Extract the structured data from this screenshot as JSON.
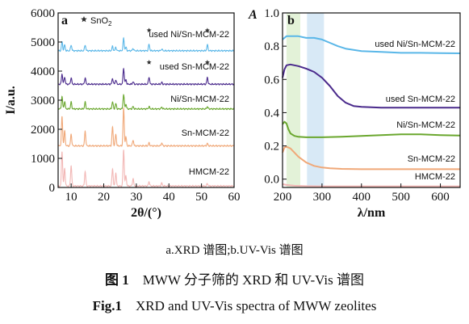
{
  "chart_data": [
    {
      "type": "line",
      "panel_label": "a",
      "xlabel": "2θ/(°)",
      "ylabel": "I/a.u.",
      "xlim": [
        6,
        60
      ],
      "ylim": [
        0,
        6000
      ],
      "xticks": [
        10,
        20,
        30,
        40,
        50,
        60
      ],
      "yticks": [
        0,
        1000,
        2000,
        3000,
        4000,
        5000,
        6000
      ],
      "legend": {
        "marker": "*",
        "label": "SnO2"
      },
      "peaks": [
        7.2,
        8.0,
        10.0,
        14.3,
        22.7,
        23.7,
        26.1,
        26.8,
        29.0,
        33.9,
        37.8,
        51.8
      ],
      "series": [
        {
          "name": "used Ni/Sn-MCM-22",
          "baseline": 4700,
          "peak_heights": [
            300,
            200,
            200,
            200,
            150,
            120,
            420,
            120,
            80,
            220,
            60,
            200
          ],
          "color": "#5ab7e8",
          "sno2_peaks_at": [
            33.9,
            51.8
          ]
        },
        {
          "name": "used Sn-MCM-22",
          "baseline": 3550,
          "peak_heights": [
            350,
            250,
            220,
            220,
            200,
            150,
            550,
            150,
            80,
            250,
            60,
            230
          ],
          "color": "#4a2a8c",
          "sno2_peaks_at": [
            33.9,
            51.8
          ]
        },
        {
          "name": "Ni/Sn-MCM-22",
          "baseline": 2700,
          "peak_heights": [
            420,
            250,
            230,
            230,
            250,
            180,
            500,
            160,
            80,
            80,
            60,
            80
          ],
          "color": "#6aa72e"
        },
        {
          "name": "Sn-MCM-22",
          "baseline": 1430,
          "peak_heights": [
            1000,
            500,
            400,
            500,
            650,
            400,
            1300,
            300,
            200,
            100,
            100,
            80
          ],
          "color": "#f0a878"
        },
        {
          "name": "HMCM-22",
          "baseline": 50,
          "peak_heights": [
            1200,
            600,
            700,
            500,
            600,
            450,
            1250,
            350,
            250,
            150,
            100,
            80
          ],
          "color": "#f2b7b5"
        }
      ]
    },
    {
      "type": "line",
      "panel_label": "b",
      "xlabel": "λ/nm",
      "ylabel": "A",
      "xlim": [
        200,
        650
      ],
      "ylim": [
        -0.05,
        1.0
      ],
      "xticks": [
        200,
        300,
        400,
        500,
        600
      ],
      "yticks": [
        0.0,
        0.2,
        0.4,
        0.6,
        0.8,
        1.0
      ],
      "highlight_bands": [
        {
          "x": [
            210,
            245
          ],
          "color": "#e3f2d8"
        },
        {
          "x": [
            262,
            305
          ],
          "color": "#d8e9f6"
        }
      ],
      "series": [
        {
          "name": "used Ni/Sn-MCM-22",
          "color": "#5ab7e8",
          "x": [
            200,
            210,
            220,
            240,
            260,
            280,
            300,
            320,
            340,
            360,
            400,
            450,
            500,
            550,
            600,
            650
          ],
          "y": [
            0.84,
            0.86,
            0.86,
            0.86,
            0.85,
            0.85,
            0.84,
            0.82,
            0.8,
            0.785,
            0.77,
            0.765,
            0.76,
            0.76,
            0.758,
            0.757
          ]
        },
        {
          "name": "used Sn-MCM-22",
          "color": "#4a2a8c",
          "x": [
            200,
            205,
            210,
            220,
            240,
            260,
            280,
            300,
            320,
            340,
            360,
            380,
            400,
            450,
            500,
            550,
            600,
            650
          ],
          "y": [
            0.61,
            0.66,
            0.685,
            0.69,
            0.68,
            0.665,
            0.645,
            0.61,
            0.56,
            0.5,
            0.46,
            0.44,
            0.435,
            0.43,
            0.43,
            0.43,
            0.43,
            0.43
          ]
        },
        {
          "name": "Ni/Sn-MCM-22",
          "color": "#6aa72e",
          "x": [
            200,
            205,
            210,
            215,
            220,
            230,
            240,
            260,
            280,
            300,
            350,
            400,
            450,
            500,
            550,
            600,
            650
          ],
          "y": [
            0.33,
            0.345,
            0.335,
            0.3,
            0.275,
            0.26,
            0.255,
            0.252,
            0.252,
            0.252,
            0.255,
            0.26,
            0.265,
            0.27,
            0.27,
            0.265,
            0.262
          ]
        },
        {
          "name": "Sn-MCM-22",
          "color": "#f0a878",
          "x": [
            200,
            205,
            210,
            220,
            230,
            240,
            260,
            280,
            300,
            320,
            350,
            400,
            450,
            500,
            550,
            600,
            650
          ],
          "y": [
            0.16,
            0.19,
            0.195,
            0.185,
            0.16,
            0.135,
            0.1,
            0.08,
            0.07,
            0.065,
            0.062,
            0.06,
            0.06,
            0.06,
            0.06,
            0.06,
            0.06
          ]
        },
        {
          "name": "HMCM-22",
          "color": "#f2b7b5",
          "x": [
            200,
            210,
            230,
            260,
            300,
            350,
            400,
            500,
            650
          ],
          "y": [
            -0.03,
            -0.035,
            -0.04,
            -0.042,
            -0.043,
            -0.043,
            -0.043,
            -0.043,
            -0.043
          ]
        }
      ]
    }
  ],
  "captions": {
    "subcaption": "a.XRD 谱图;b.UV-Vis 谱图",
    "cn_label": "图 1",
    "cn_title": "MWW 分子筛的 XRD 和 UV-Vis 谱图",
    "en_label": "Fig.1",
    "en_title": "XRD and UV-Vis spectra of MWW zeolites"
  }
}
